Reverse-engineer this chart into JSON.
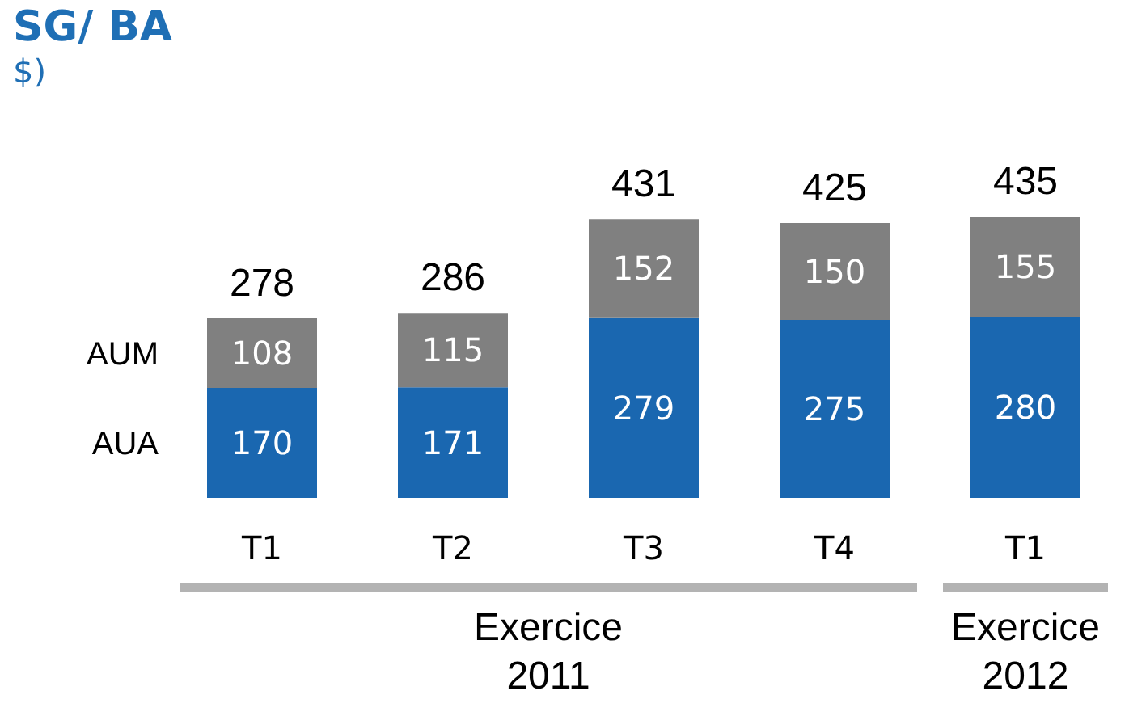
{
  "chart_data": {
    "type": "bar",
    "title": "SG/ BA",
    "subtitle": "$)",
    "categories": [
      "T1",
      "T2",
      "T3",
      "T4",
      "T1"
    ],
    "stacked": true,
    "data_labels": true,
    "series": [
      {
        "name": "AUA",
        "color": "#1a67b0",
        "values": [
          170,
          171,
          279,
          275,
          280
        ]
      },
      {
        "name": "AUM",
        "color": "#808080",
        "values": [
          108,
          115,
          152,
          150,
          155
        ]
      }
    ],
    "totals": [
      "278",
      "286",
      "431",
      "425",
      "435"
    ],
    "annotations": [
      "Exercice 2011",
      "Exercice 2012"
    ]
  }
}
